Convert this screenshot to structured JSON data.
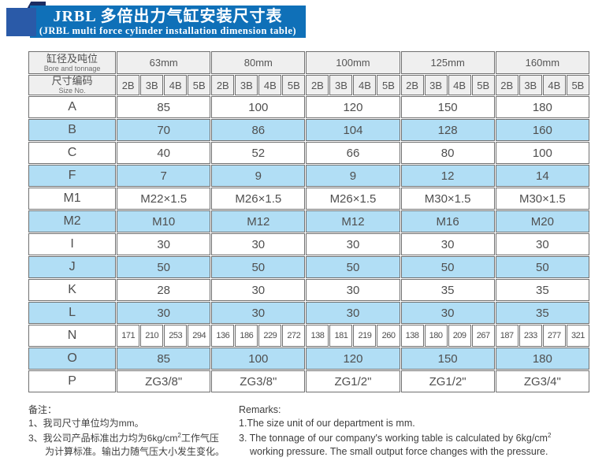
{
  "title": {
    "line1": "JRBL 多倍出力气缸安装尺寸表",
    "line2": "(JRBL multi force cylinder installation dimension table)"
  },
  "colors": {
    "banner_blue": "#0f70b8",
    "square_blue": "#2a5aa8",
    "corner_navy": "#1b2d63",
    "row_highlight_blue": "#b1def5",
    "header_gray": "#efefef",
    "border_gray": "#707070"
  },
  "table": {
    "corner_header": {
      "zh": "缸径及吨位",
      "en": "Bore and tonnage"
    },
    "size_header": {
      "zh": "尺寸编码",
      "en": "Size No."
    },
    "bore_groups": [
      "63mm",
      "80mm",
      "100mm",
      "125mm",
      "160mm"
    ],
    "sub_columns": [
      "2B",
      "3B",
      "4B",
      "5B"
    ],
    "rows": [
      {
        "label": "A",
        "type": "merged",
        "values": [
          "85",
          "100",
          "120",
          "150",
          "180"
        ]
      },
      {
        "label": "B",
        "type": "merged",
        "values": [
          "70",
          "86",
          "104",
          "128",
          "160"
        ]
      },
      {
        "label": "C",
        "type": "merged",
        "values": [
          "40",
          "52",
          "66",
          "80",
          "100"
        ]
      },
      {
        "label": "F",
        "type": "merged",
        "values": [
          "7",
          "9",
          "9",
          "12",
          "14"
        ]
      },
      {
        "label": "M1",
        "type": "merged",
        "values": [
          "M22×1.5",
          "M26×1.5",
          "M26×1.5",
          "M30×1.5",
          "M30×1.5"
        ]
      },
      {
        "label": "M2",
        "type": "merged",
        "values": [
          "M10",
          "M12",
          "M12",
          "M16",
          "M20"
        ]
      },
      {
        "label": "I",
        "type": "merged",
        "values": [
          "30",
          "30",
          "30",
          "30",
          "30"
        ]
      },
      {
        "label": "J",
        "type": "merged",
        "values": [
          "50",
          "50",
          "50",
          "50",
          "50"
        ]
      },
      {
        "label": "K",
        "type": "merged",
        "values": [
          "28",
          "30",
          "30",
          "35",
          "35"
        ]
      },
      {
        "label": "L",
        "type": "merged",
        "values": [
          "30",
          "30",
          "30",
          "30",
          "35"
        ]
      },
      {
        "label": "N",
        "type": "per-size",
        "values": [
          "171",
          "210",
          "253",
          "294",
          "136",
          "186",
          "229",
          "272",
          "138",
          "181",
          "219",
          "260",
          "138",
          "180",
          "209",
          "267",
          "187",
          "233",
          "277",
          "321"
        ]
      },
      {
        "label": "O",
        "type": "merged",
        "values": [
          "85",
          "100",
          "120",
          "150",
          "180"
        ]
      },
      {
        "label": "P",
        "type": "merged",
        "values": [
          "ZG3/8\"",
          "ZG3/8\"",
          "ZG1/2\"",
          "ZG1/2\"",
          "ZG3/4\""
        ]
      }
    ]
  },
  "notes_zh": {
    "heading": "备注：",
    "line1": "1、我司尺寸单位均为mm。",
    "line2_part1": "3、我公司产品标准出力均为6kg/cm",
    "line2_sup": "2",
    "line2_part2": "工作气压",
    "line3": "为计算标准。输出力随气压大小发生变化。"
  },
  "notes_en": {
    "heading": "Remarks:",
    "line1": "1.The size unit of our department is mm.",
    "line2_part1": "3. The tonnage of our company's working table is calculated by 6kg/cm",
    "line2_sup": "2",
    "line3": "working pressure. The small output force changes with the pressure."
  }
}
